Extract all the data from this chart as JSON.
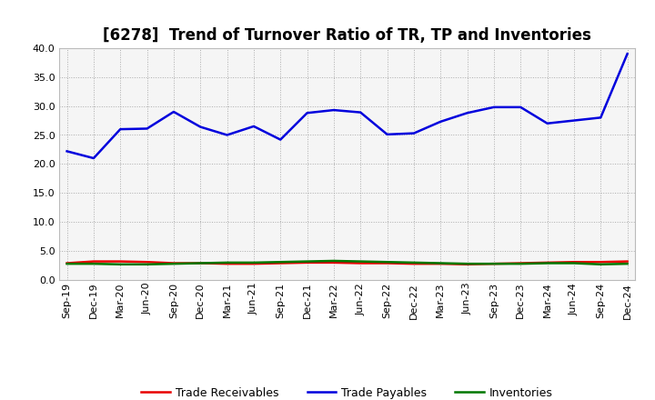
{
  "title": "[6278]  Trend of Turnover Ratio of TR, TP and Inventories",
  "labels": [
    "Sep-19",
    "Dec-19",
    "Mar-20",
    "Jun-20",
    "Sep-20",
    "Dec-20",
    "Mar-21",
    "Jun-21",
    "Sep-21",
    "Dec-21",
    "Mar-22",
    "Jun-22",
    "Sep-22",
    "Dec-22",
    "Mar-23",
    "Jun-23",
    "Sep-23",
    "Dec-23",
    "Mar-24",
    "Jun-24",
    "Sep-24",
    "Dec-24"
  ],
  "trade_receivables": [
    2.9,
    3.2,
    3.2,
    3.1,
    2.9,
    2.9,
    2.8,
    2.8,
    2.9,
    3.0,
    3.0,
    2.9,
    2.9,
    2.8,
    2.8,
    2.7,
    2.8,
    2.9,
    3.0,
    3.1,
    3.1,
    3.2
  ],
  "trade_payables": [
    22.2,
    21.0,
    26.0,
    26.1,
    29.0,
    26.4,
    25.0,
    26.5,
    24.2,
    28.8,
    29.3,
    28.9,
    25.1,
    25.3,
    27.3,
    28.8,
    29.8,
    29.8,
    27.0,
    27.5,
    28.0,
    39.0
  ],
  "inventories": [
    2.8,
    2.8,
    2.7,
    2.7,
    2.8,
    2.9,
    3.0,
    3.0,
    3.1,
    3.2,
    3.3,
    3.2,
    3.1,
    3.0,
    2.9,
    2.8,
    2.8,
    2.8,
    2.9,
    2.9,
    2.7,
    2.8
  ],
  "tr_color": "#e80000",
  "tp_color": "#0000dd",
  "inv_color": "#007700",
  "bg_color": "#ffffff",
  "plot_bg_color": "#f5f5f5",
  "grid_color": "#999999",
  "ylim": [
    0.0,
    40.0
  ],
  "yticks": [
    0.0,
    5.0,
    10.0,
    15.0,
    20.0,
    25.0,
    30.0,
    35.0,
    40.0
  ],
  "title_fontsize": 12,
  "tick_fontsize": 8,
  "legend_fontsize": 9
}
